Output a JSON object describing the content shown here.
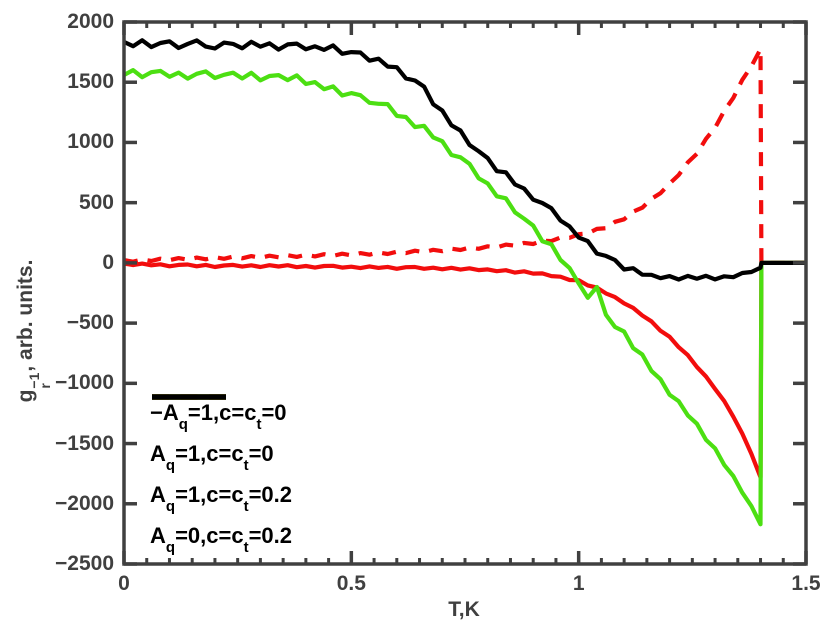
{
  "chart_data": {
    "type": "line",
    "title": "",
    "xlabel": "T,K",
    "ylabel_parts": {
      "base": "g",
      "sup": "−1",
      "sub": "r",
      "rest": ", arb. units."
    },
    "xlim": [
      0,
      1.5
    ],
    "ylim": [
      -2500,
      2000
    ],
    "x_ticks": {
      "values": [
        0,
        0.5,
        1,
        1.5
      ],
      "labels": [
        "0",
        "0.5",
        "1",
        "1.5"
      ]
    },
    "x_minor_step": 0.05,
    "y_ticks": {
      "values": [
        2000,
        1500,
        1000,
        500,
        0,
        -500,
        -1000,
        -1500,
        -2000,
        -2500
      ],
      "labels": [
        "2000",
        "1500",
        "1000",
        "500",
        "0",
        "−500",
        "−1000",
        "−1500",
        "−2000",
        "−2500"
      ]
    },
    "grid": false,
    "legend_position": "lower-left-inside",
    "axis_color": "#404040",
    "x": [
      0,
      0.02,
      0.04,
      0.06,
      0.08,
      0.1,
      0.12,
      0.14,
      0.16,
      0.18,
      0.2,
      0.22,
      0.24,
      0.26,
      0.28,
      0.3,
      0.32,
      0.34,
      0.36,
      0.38,
      0.4,
      0.42,
      0.44,
      0.46,
      0.48,
      0.5,
      0.52,
      0.54,
      0.56,
      0.58,
      0.6,
      0.62,
      0.64,
      0.66,
      0.68,
      0.7,
      0.72,
      0.74,
      0.76,
      0.78,
      0.8,
      0.82,
      0.84,
      0.86,
      0.88,
      0.9,
      0.92,
      0.94,
      0.96,
      0.98,
      1.0,
      1.02,
      1.04,
      1.06,
      1.08,
      1.1,
      1.12,
      1.14,
      1.16,
      1.18,
      1.2,
      1.22,
      1.24,
      1.26,
      1.28,
      1.3,
      1.32,
      1.34,
      1.36,
      1.38,
      1.4,
      1.402,
      1.5
    ],
    "series": [
      {
        "key": "red-dashed",
        "name": "−A_q=1,c=c_t=0",
        "color": "#f20d0d",
        "style": "dashed",
        "y": [
          23,
          10,
          29,
          16,
          35,
          22,
          40,
          26,
          44,
          30,
          48,
          34,
          52,
          38,
          56,
          42,
          60,
          46,
          64,
          50,
          68,
          54,
          72,
          58,
          76,
          62,
          81,
          68,
          87,
          74,
          93,
          81,
          101,
          89,
          109,
          97,
          118,
          107,
          128,
          117,
          138,
          129,
          152,
          143,
          166,
          157,
          185,
          181,
          211,
          208,
          238,
          244,
          282,
          288,
          341,
          362,
          426,
          458,
          532,
          579,
          658,
          730,
          834,
          906,
          1030,
          1122,
          1262,
          1370,
          1520,
          1632,
          1775,
          0,
          0
        ]
      },
      {
        "key": "red-solid",
        "name": "A_q=1,c=c_t=0",
        "color": "#f20d0d",
        "style": "solid",
        "y": [
          -5,
          -18,
          -6,
          -20,
          -12,
          -28,
          -17,
          -13,
          -28,
          -17,
          -34,
          -22,
          -17,
          -31,
          -20,
          -34,
          -19,
          -30,
          -19,
          -36,
          -26,
          -39,
          -26,
          -24,
          -39,
          -32,
          -43,
          -29,
          -42,
          -33,
          -49,
          -36,
          -34,
          -49,
          -40,
          -53,
          -41,
          -56,
          -45,
          -60,
          -54,
          -69,
          -61,
          -81,
          -70,
          -89,
          -87,
          -110,
          -115,
          -142,
          -144,
          -187,
          -205,
          -253,
          -284,
          -336,
          -374,
          -437,
          -485,
          -564,
          -613,
          -700,
          -766,
          -864,
          -943,
          -1047,
          -1147,
          -1277,
          -1417,
          -1586,
          -1780,
          0,
          0
        ]
      },
      {
        "key": "green-solid",
        "name": "A_q=1,c=c_t=0.2",
        "color": "#4cdf12",
        "style": "solid",
        "y": [
          1560,
          1601,
          1542,
          1583,
          1594,
          1545,
          1580,
          1530,
          1570,
          1590,
          1535,
          1562,
          1579,
          1531,
          1578,
          1515,
          1552,
          1559,
          1518,
          1557,
          1485,
          1501,
          1442,
          1465,
          1390,
          1410,
          1392,
          1329,
          1321,
          1318,
          1220,
          1211,
          1127,
          1138,
          1042,
          1010,
          896,
          877,
          823,
          702,
          660,
          553,
          536,
          419,
          367,
          310,
          180,
          155,
          24,
          -43,
          -170,
          -290,
          -200,
          -430,
          -532,
          -570,
          -708,
          -761,
          -897,
          -966,
          -1095,
          -1148,
          -1266,
          -1335,
          -1470,
          -1540,
          -1677,
          -1769,
          -1908,
          -2019,
          -2170,
          0,
          0
        ]
      },
      {
        "key": "black-solid",
        "name": "A_q=0,c=c_t=0.2",
        "color": "#000000",
        "style": "solid",
        "y": [
          1835,
          1799,
          1848,
          1792,
          1826,
          1840,
          1784,
          1818,
          1847,
          1796,
          1780,
          1829,
          1818,
          1782,
          1836,
          1795,
          1823,
          1771,
          1814,
          1821,
          1773,
          1798,
          1768,
          1806,
          1736,
          1750,
          1747,
          1679,
          1695,
          1630,
          1625,
          1532,
          1514,
          1464,
          1317,
          1265,
          1142,
          1099,
          979,
          927,
          870,
          761,
          752,
          651,
          618,
          525,
          497,
          454,
          351,
          303,
          210,
          181,
          77,
          58,
          24,
          -55,
          -44,
          -98,
          -99,
          -127,
          -110,
          -138,
          -108,
          -131,
          -107,
          -137,
          -111,
          -119,
          -84,
          -76,
          -40,
          0,
          0
        ]
      }
    ],
    "legend_items": [
      {
        "pre": "−A",
        "sub1": "q",
        "mid": "=1,c=c",
        "sub2": "t",
        "post": "=0"
      },
      {
        "pre": "A",
        "sub1": "q",
        "mid": "=1,c=c",
        "sub2": "t",
        "post": "=0"
      },
      {
        "pre": "A",
        "sub1": "q",
        "mid": "=1,c=c",
        "sub2": "t",
        "post": "=0.2"
      },
      {
        "pre": "A",
        "sub1": "q",
        "mid": "=0,c=c",
        "sub2": "t",
        "post": "=0.2"
      }
    ]
  }
}
